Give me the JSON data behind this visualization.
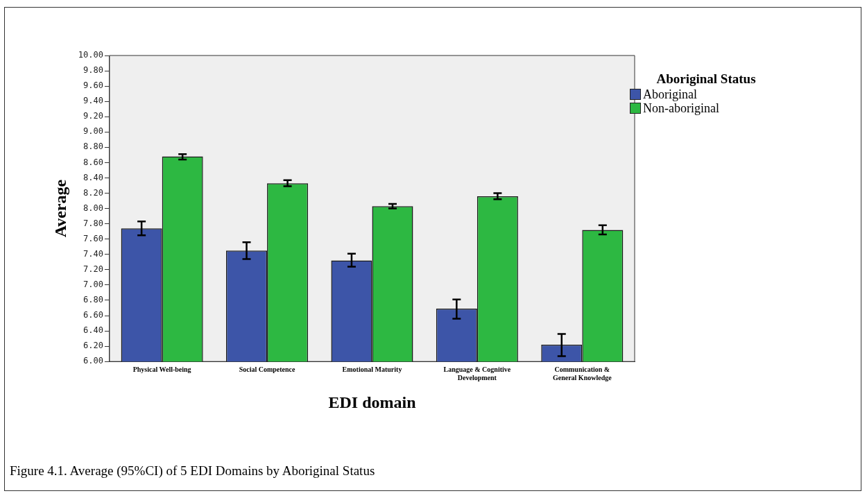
{
  "chart_data": {
    "type": "bar",
    "xlabel": "EDI domain",
    "ylabel": "Average",
    "legend_title": "Aboriginal Status",
    "categories": [
      "Physical Well-being",
      "Social Competence",
      "Emotional Maturity",
      "Language & Cognitive Development",
      "Communication & General Knowledge"
    ],
    "series": [
      {
        "name": "Aboriginal",
        "color": "#3d55a8",
        "values": [
          7.74,
          7.45,
          7.32,
          6.69,
          6.22
        ],
        "errors": [
          [
            7.65,
            7.83
          ],
          [
            7.34,
            7.56
          ],
          [
            7.24,
            7.41
          ],
          [
            6.56,
            6.81
          ],
          [
            6.07,
            6.36
          ]
        ]
      },
      {
        "name": "Non-aboriginal",
        "color": "#2db842",
        "values": [
          8.68,
          8.33,
          8.03,
          8.16,
          7.72
        ],
        "errors": [
          [
            8.64,
            8.71
          ],
          [
            8.29,
            8.37
          ],
          [
            8.0,
            8.06
          ],
          [
            8.12,
            8.2
          ],
          [
            7.66,
            7.78
          ]
        ]
      }
    ],
    "ylim": [
      6,
      10
    ],
    "yticks": [
      {
        "value": 6,
        "label": "6.00"
      },
      {
        "value": 6.2,
        "label": "6.20"
      },
      {
        "value": 6.4,
        "label": "6.40"
      },
      {
        "value": 6.6,
        "label": "6.60"
      },
      {
        "value": 6.8,
        "label": "6.80"
      },
      {
        "value": 7,
        "label": "7.00"
      },
      {
        "value": 7.2,
        "label": "7.20"
      },
      {
        "value": 7.4,
        "label": "7.40"
      },
      {
        "value": 7.6,
        "label": "7.60"
      },
      {
        "value": 7.8,
        "label": "7.80"
      },
      {
        "value": 8,
        "label": "8.00"
      },
      {
        "value": 8.2,
        "label": "8.20"
      },
      {
        "value": 8.4,
        "label": "8.40"
      },
      {
        "value": 8.6,
        "label": "8.60"
      },
      {
        "value": 8.8,
        "label": "8.80"
      },
      {
        "value": 9,
        "label": "9.00"
      },
      {
        "value": 9.2,
        "label": "9.20"
      },
      {
        "value": 9.4,
        "label": "9.40"
      },
      {
        "value": 9.6,
        "label": "9.60"
      },
      {
        "value": 9.8,
        "label": "9.80"
      },
      {
        "value": 10,
        "label": "10.00"
      }
    ],
    "grid": false,
    "legend": "top right",
    "annotations": [
      "Figure 4.1. Average (95%CI) of 5 EDI Domains by Aboriginal Status"
    ]
  }
}
